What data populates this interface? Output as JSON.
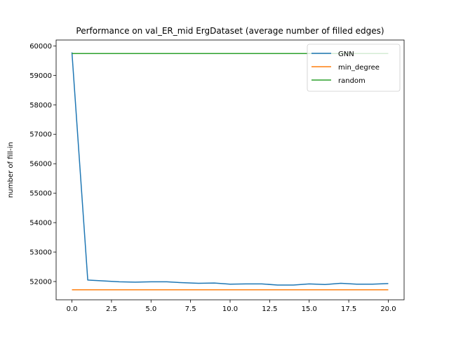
{
  "chart_data": {
    "type": "line",
    "title": "Performance on val_ER_mid ErgDataset (average number of filled edges)",
    "xlabel": "",
    "ylabel": "number of fill-in",
    "xlim": [
      -1.0,
      21.0
    ],
    "ylim": [
      51380,
      60200
    ],
    "x_ticks": [
      0.0,
      2.5,
      5.0,
      7.5,
      10.0,
      12.5,
      15.0,
      17.5,
      20.0
    ],
    "x_tick_labels": [
      "0.0",
      "2.5",
      "5.0",
      "7.5",
      "10.0",
      "12.5",
      "15.0",
      "17.5",
      "20.0"
    ],
    "y_ticks": [
      52000,
      53000,
      54000,
      55000,
      56000,
      57000,
      58000,
      59000,
      60000
    ],
    "y_tick_labels": [
      "52000",
      "53000",
      "54000",
      "55000",
      "56000",
      "57000",
      "58000",
      "59000",
      "60000"
    ],
    "grid": false,
    "legend_position": "top-right",
    "x": [
      0,
      1,
      2,
      3,
      4,
      5,
      6,
      7,
      8,
      9,
      10,
      11,
      12,
      13,
      14,
      15,
      16,
      17,
      18,
      19,
      20
    ],
    "series": [
      {
        "name": "GNN",
        "color": "#1f77b4",
        "values": [
          59780,
          52050,
          52020,
          51990,
          51980,
          51990,
          51990,
          51960,
          51940,
          51950,
          51910,
          51920,
          51920,
          51880,
          51880,
          51920,
          51900,
          51940,
          51910,
          51910,
          51930
        ]
      },
      {
        "name": "min_degree",
        "color": "#ff7f0e",
        "values": [
          51720,
          51720,
          51720,
          51720,
          51720,
          51720,
          51720,
          51720,
          51720,
          51720,
          51720,
          51720,
          51720,
          51720,
          51720,
          51720,
          51720,
          51720,
          51720,
          51720,
          51720
        ]
      },
      {
        "name": "random",
        "color": "#2ca02c",
        "values": [
          59740,
          59740,
          59740,
          59740,
          59740,
          59740,
          59740,
          59740,
          59740,
          59740,
          59740,
          59740,
          59740,
          59740,
          59740,
          59740,
          59740,
          59740,
          59740,
          59740,
          59740
        ]
      }
    ]
  }
}
